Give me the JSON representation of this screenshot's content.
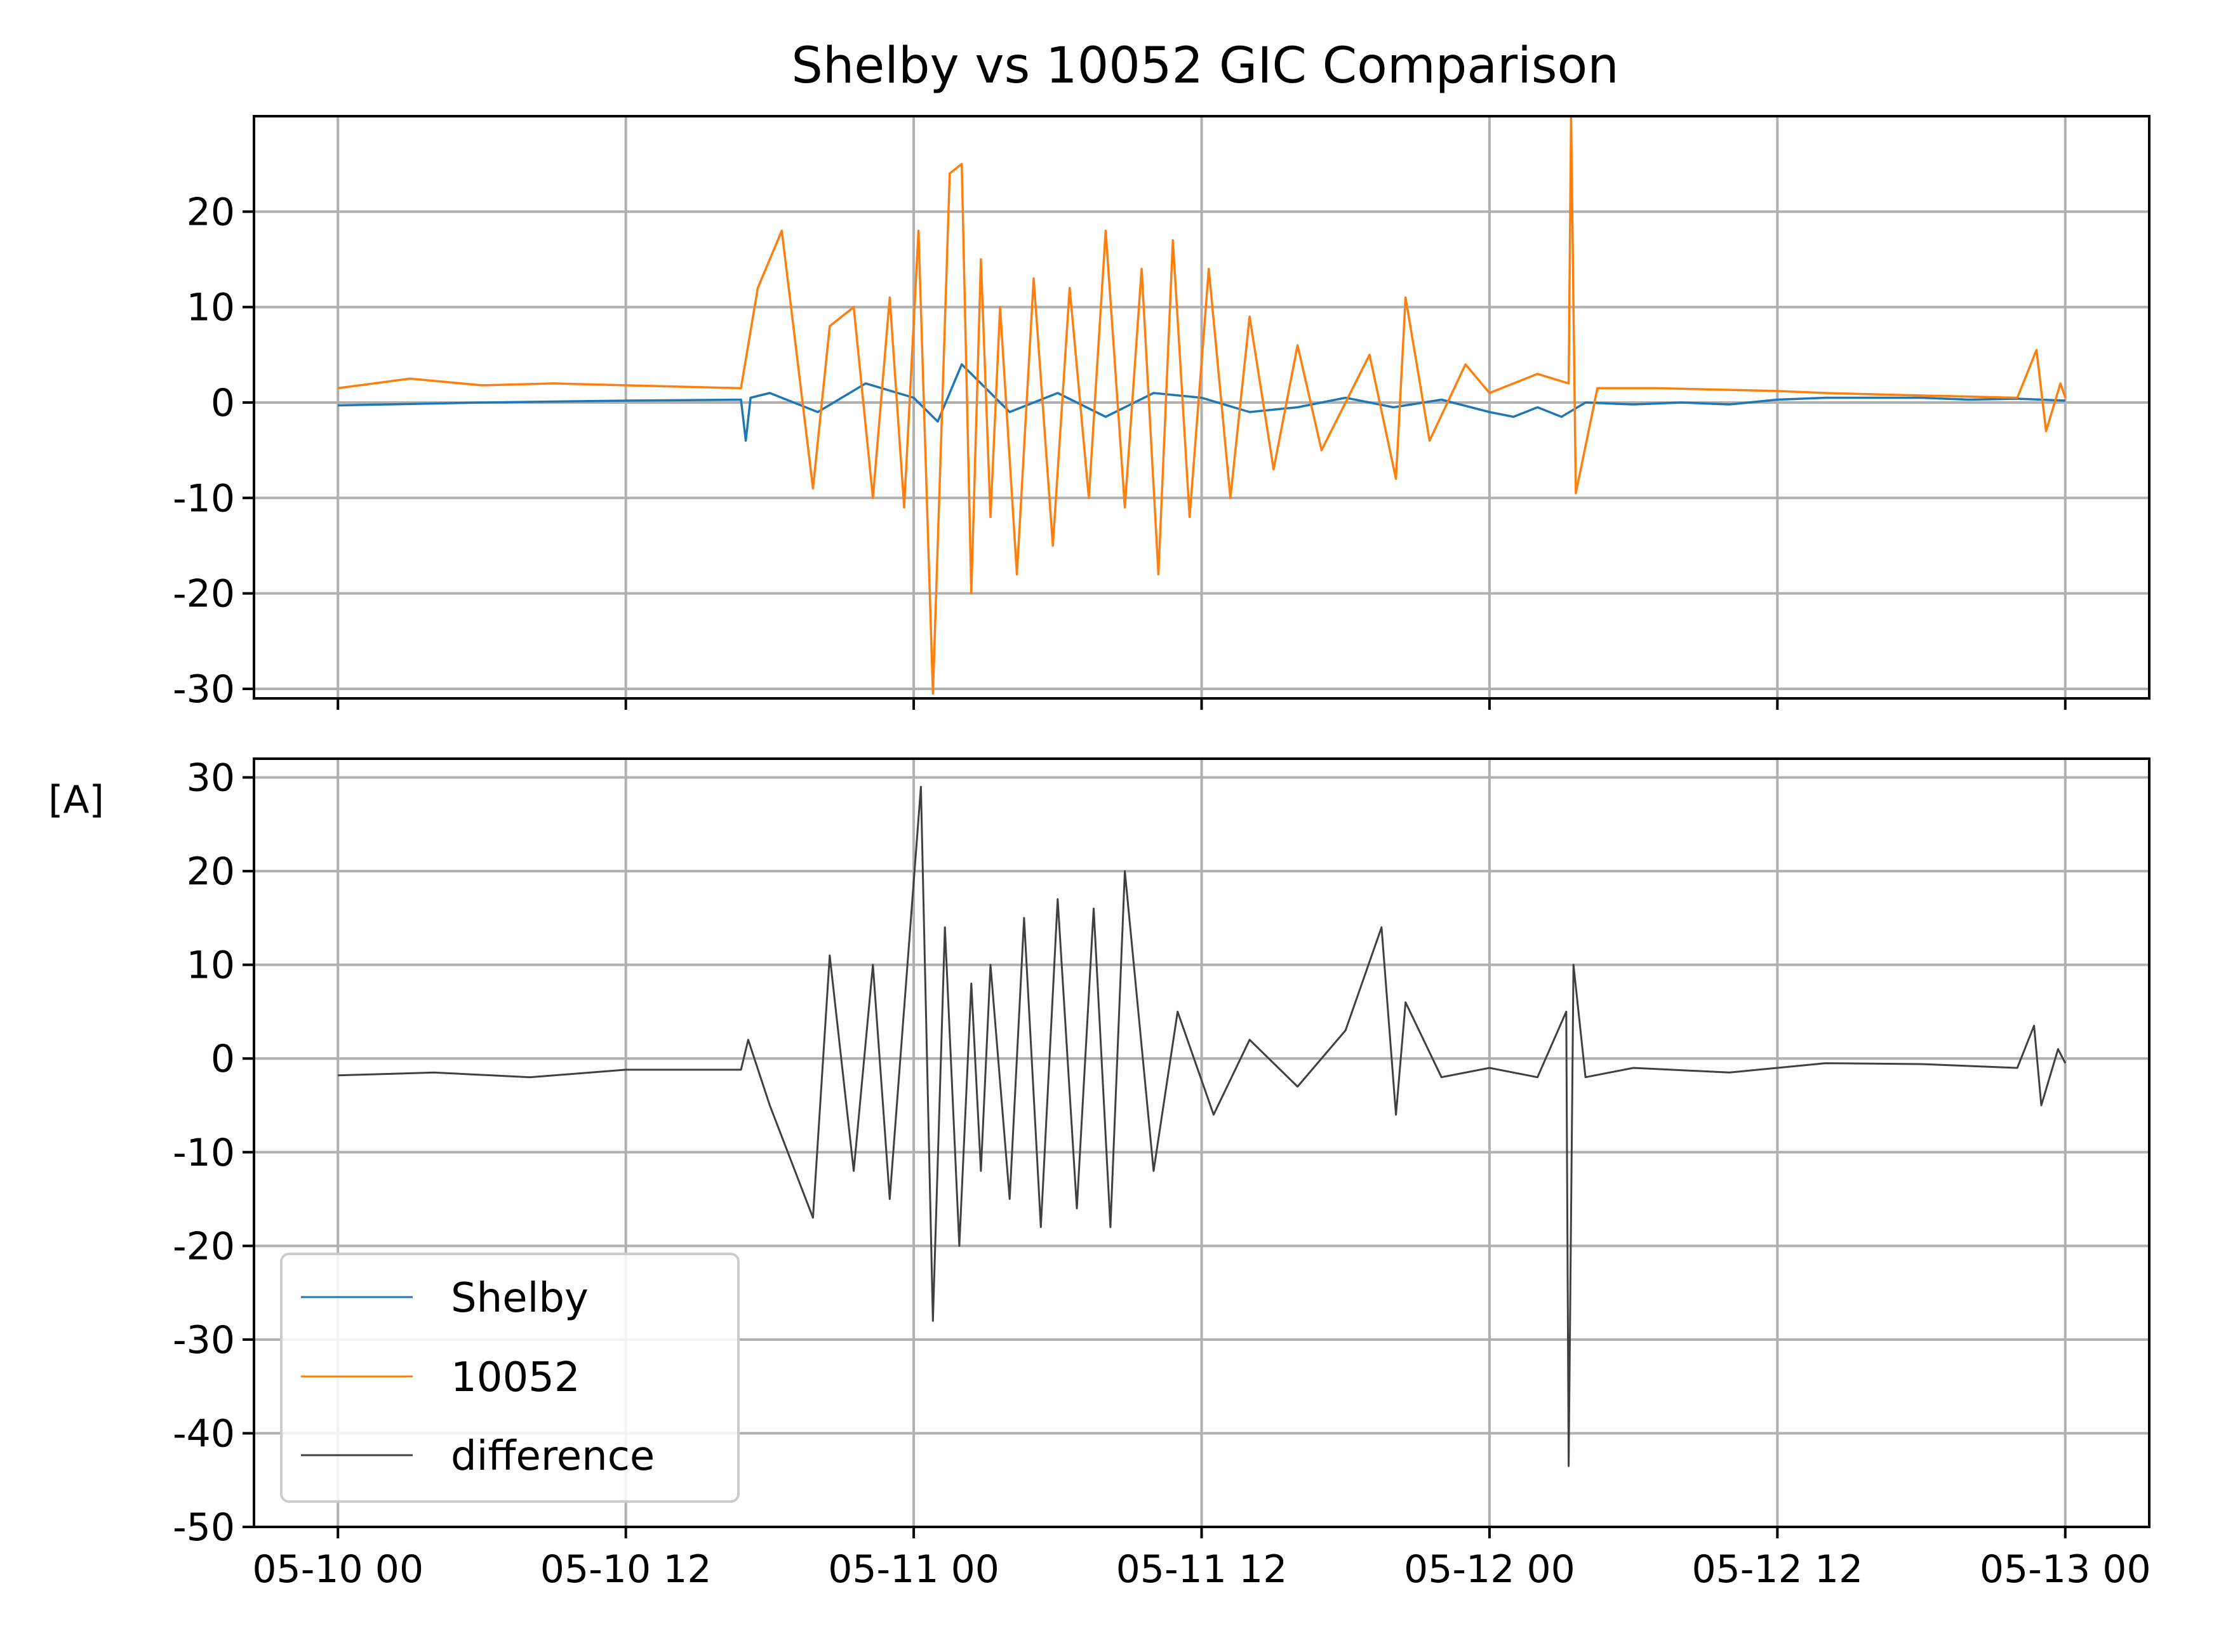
{
  "colors": {
    "shelby": "#1f77b4",
    "n10052": "#ff7f0e",
    "difference": "#404040",
    "grid": "#b0b0b0"
  },
  "chart_data": {
    "type": "line",
    "title": "Shelby vs 10052 GIC Comparison",
    "ylabel": "[A]",
    "x_unit": "hours since 05-10 00",
    "x_ticks": [
      0,
      12,
      24,
      36,
      48,
      60,
      72
    ],
    "x_tick_labels": [
      "05-10 00",
      "05-10 12",
      "05-11 00",
      "05-11 12",
      "05-12 00",
      "05-12 12",
      "05-13 00"
    ],
    "xlim": [
      -3.5,
      75.5
    ],
    "legend": {
      "placement": "lower-left",
      "entries": [
        "Shelby",
        "10052",
        "difference"
      ]
    },
    "grid": true,
    "panels": [
      {
        "name": "top",
        "ylim": [
          -31,
          30
        ],
        "y_ticks": [
          20,
          10,
          0,
          -10,
          -20,
          -30
        ],
        "y_tick_labels": [
          "20",
          "10",
          "0",
          "-10",
          "-20",
          "-30"
        ],
        "series": [
          {
            "name": "Shelby",
            "color": "#1f77b4",
            "x": [
              0,
              6,
              12,
              16.8,
              17,
              17.2,
              18,
              20,
              22,
              24,
              25,
              26,
              28,
              30,
              32,
              34,
              36,
              38,
              40,
              42,
              44,
              46,
              48,
              49,
              50,
              51,
              52,
              54,
              56,
              58,
              60,
              62,
              64,
              66,
              68,
              70,
              72
            ],
            "y": [
              -0.3,
              0,
              0.2,
              0.3,
              -4,
              0.5,
              1,
              -1,
              2,
              0.5,
              -2,
              4,
              -1,
              1,
              -1.5,
              1,
              0.5,
              -1,
              -0.5,
              0.5,
              -0.5,
              0.3,
              -1,
              -1.5,
              -0.5,
              -1.5,
              0,
              -0.2,
              0,
              -0.2,
              0.3,
              0.5,
              0.5,
              0.5,
              0.3,
              0.4,
              0.2
            ]
          },
          {
            "name": "10052",
            "color": "#ff7f0e",
            "x": [
              0,
              3,
              6,
              9,
              12,
              16.8,
              17.5,
              18.5,
              19.8,
              20.5,
              21.5,
              22.3,
              23,
              23.6,
              24.2,
              24.8,
              25.5,
              26,
              26.4,
              26.8,
              27.2,
              27.6,
              28.3,
              29,
              29.8,
              30.5,
              31.3,
              32,
              32.8,
              33.5,
              34.2,
              34.8,
              35.5,
              36.3,
              37.2,
              38,
              39,
              40,
              41,
              43,
              44.1,
              44.5,
              45.5,
              47,
              48,
              50,
              51.3,
              51.4,
              51.6,
              52.5,
              55,
              60,
              62,
              65,
              70,
              70.8,
              71.2,
              71.8,
              72
            ],
            "y": [
              1.5,
              2.5,
              1.8,
              2,
              1.8,
              1.5,
              12,
              18,
              -9,
              8,
              10,
              -10,
              11,
              -11,
              18,
              -30.5,
              24,
              25,
              -20,
              15,
              -12,
              10,
              -18,
              13,
              -15,
              12,
              -10,
              18,
              -11,
              14,
              -18,
              17,
              -12,
              14,
              -10,
              9,
              -7,
              6,
              -5,
              5,
              -8,
              11,
              -4,
              4,
              1,
              3,
              2,
              30,
              -9.5,
              1.5,
              1.5,
              1.2,
              1,
              0.8,
              0.5,
              5.5,
              -3,
              2,
              0.5
            ]
          }
        ]
      },
      {
        "name": "bottom",
        "ylim": [
          -50,
          32
        ],
        "y_ticks": [
          30,
          20,
          10,
          0,
          -10,
          -20,
          -30,
          -40,
          -50
        ],
        "y_tick_labels": [
          "30",
          "20",
          "10",
          "0",
          "-10",
          "-20",
          "-30",
          "-40",
          "-50"
        ],
        "series": [
          {
            "name": "difference",
            "color": "#404040",
            "x": [
              0,
              4,
              8,
              12,
              16.8,
              17.1,
              18,
              19.8,
              20.5,
              21.5,
              22.3,
              23,
              24.3,
              24.8,
              25.3,
              25.9,
              26.4,
              26.8,
              27.2,
              28,
              28.6,
              29.3,
              30,
              30.8,
              31.5,
              32.2,
              32.8,
              34,
              35,
              36.5,
              38,
              40,
              42,
              43.5,
              44.1,
              44.5,
              46,
              48,
              50,
              51.2,
              51.3,
              51.5,
              52,
              54,
              58,
              62,
              66,
              70,
              70.7,
              71,
              71.7,
              72
            ],
            "y": [
              -1.8,
              -1.5,
              -2,
              -1.2,
              -1.2,
              2,
              -5,
              -17,
              11,
              -12,
              10,
              -15,
              29,
              -28,
              14,
              -20,
              8,
              -12,
              10,
              -15,
              15,
              -18,
              17,
              -16,
              16,
              -18,
              20,
              -12,
              5,
              -6,
              2,
              -3,
              3,
              14,
              -6,
              6,
              -2,
              -1,
              -2,
              5,
              -43.5,
              10,
              -2,
              -1,
              -1.5,
              -0.5,
              -0.6,
              -1,
              3.5,
              -5,
              1,
              -0.5
            ]
          }
        ]
      }
    ]
  }
}
